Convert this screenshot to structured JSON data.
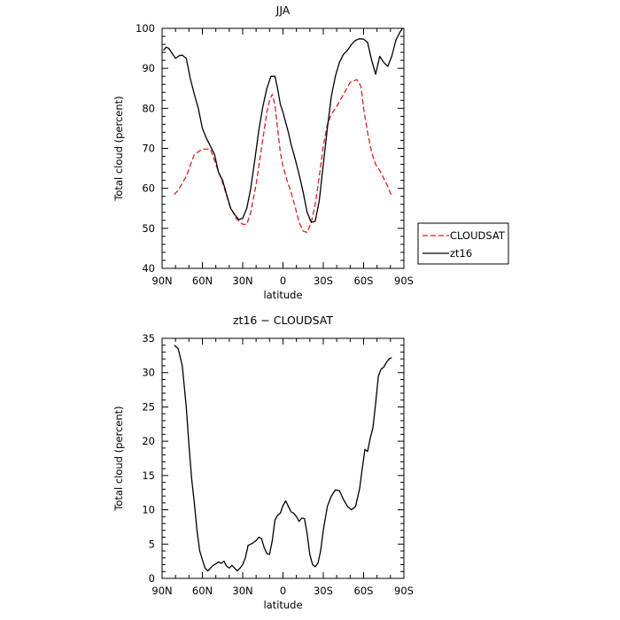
{
  "chart_data": [
    {
      "type": "line",
      "title": "JJA",
      "xlabel": "latitude",
      "ylabel": "Total cloud (percent)",
      "xlim": [
        90,
        -90
      ],
      "ylim": [
        40,
        100
      ],
      "xticks": [
        90,
        60,
        30,
        0,
        -30,
        -60,
        -90
      ],
      "xtick_labels": [
        "90N",
        "60N",
        "30N",
        "0",
        "30S",
        "60S",
        "90S"
      ],
      "yticks": [
        40,
        50,
        60,
        70,
        80,
        90,
        100
      ],
      "ytick_labels": [
        "40",
        "50",
        "60",
        "70",
        "80",
        "90",
        "100"
      ],
      "legend_position": "right, outside plot",
      "series": [
        {
          "name": "CLOUDSAT",
          "color": "#e0201c",
          "style": "dashed",
          "x": [
            81,
            78,
            72,
            66,
            60,
            54,
            50,
            45,
            40,
            35,
            30,
            27,
            24,
            20,
            16,
            12,
            10,
            8,
            6,
            4,
            2,
            0,
            -3,
            -6,
            -9,
            -12,
            -15,
            -18,
            -21,
            -24,
            -27,
            -30,
            -33,
            -36,
            -40,
            -45,
            -50,
            -55,
            -58,
            -60,
            -63,
            -66,
            -69,
            -72,
            -75,
            -78,
            -81
          ],
          "y": [
            58.5,
            59.5,
            63,
            68.5,
            69.8,
            69.8,
            66,
            61.5,
            56,
            52.5,
            51,
            51,
            54,
            61,
            70,
            79,
            82,
            83.5,
            81,
            75,
            69,
            65.5,
            62,
            59,
            55.5,
            51.5,
            49.3,
            49,
            51.5,
            56,
            63,
            70.5,
            76,
            78.5,
            80.5,
            83.5,
            86.5,
            87.2,
            85.5,
            80,
            74,
            69,
            66,
            64.5,
            62.5,
            60.5,
            58
          ]
        },
        {
          "name": "zt16",
          "color": "#000000",
          "style": "solid",
          "x": [
            89,
            87,
            85,
            82,
            80,
            77,
            75,
            72,
            69,
            66,
            63,
            60,
            57,
            54,
            51,
            48,
            45,
            42,
            39,
            36,
            33,
            30,
            27,
            24,
            21,
            18,
            15,
            12,
            9,
            6,
            4,
            2,
            0,
            -2,
            -4,
            -6,
            -9,
            -12,
            -15,
            -18,
            -21,
            -24,
            -27,
            -30,
            -33,
            -36,
            -39,
            -42,
            -45,
            -48,
            -51,
            -54,
            -57,
            -60,
            -63,
            -66,
            -69,
            -72,
            -75,
            -78,
            -81,
            -84,
            -87,
            -89
          ],
          "y": [
            94.5,
            95.3,
            95,
            93.5,
            92.5,
            93.2,
            93.3,
            92.5,
            87.5,
            83.5,
            80,
            75,
            72.5,
            70.5,
            68.5,
            64,
            62,
            58.5,
            55,
            53.5,
            52.2,
            52.5,
            55,
            60,
            67,
            74.5,
            80.5,
            85,
            88,
            88,
            85,
            81,
            79,
            76.5,
            74,
            71,
            67.5,
            63.5,
            59,
            54,
            51.5,
            51.8,
            57,
            66,
            75,
            83,
            88,
            91.5,
            93.5,
            94.5,
            96,
            97,
            97.4,
            97.3,
            96.5,
            92,
            88.5,
            93,
            91.5,
            90.5,
            93,
            97,
            99,
            100
          ]
        }
      ]
    },
    {
      "type": "line",
      "title": "zt16 − CLOUDSAT",
      "xlabel": "latitude",
      "ylabel": "Total cloud (percent)",
      "xlim": [
        90,
        -90
      ],
      "ylim": [
        0,
        35
      ],
      "xticks": [
        90,
        60,
        30,
        0,
        -30,
        -60,
        -90
      ],
      "xtick_labels": [
        "90N",
        "60N",
        "30N",
        "0",
        "30S",
        "60S",
        "90S"
      ],
      "yticks": [
        0,
        5,
        10,
        15,
        20,
        25,
        30,
        35
      ],
      "ytick_labels": [
        "0",
        "5",
        "10",
        "15",
        "20",
        "25",
        "30",
        "35"
      ],
      "series": [
        {
          "color": "#000000",
          "style": "solid",
          "x": [
            81,
            78,
            75,
            72,
            70,
            68,
            66,
            64,
            62,
            60,
            58,
            56,
            54,
            52,
            50,
            48,
            46,
            44,
            42,
            40,
            38,
            36,
            34,
            32,
            30,
            28,
            26,
            24,
            22,
            20,
            18,
            16,
            14,
            12,
            10,
            8,
            6,
            4,
            2,
            0,
            -2,
            -4,
            -6,
            -8,
            -10,
            -12,
            -14,
            -16,
            -18,
            -20,
            -22,
            -24,
            -26,
            -28,
            -30,
            -33,
            -36,
            -39,
            -42,
            -45,
            -48,
            -51,
            -54,
            -57,
            -59,
            -61,
            -63,
            -65,
            -67,
            -69,
            -71,
            -73,
            -75,
            -77,
            -79,
            -81
          ],
          "y": [
            34,
            33.5,
            31,
            25,
            19.5,
            14.5,
            11,
            7,
            4,
            2.7,
            1.5,
            1.1,
            1.5,
            1.9,
            2.1,
            2.4,
            2.2,
            2.5,
            1.8,
            1.5,
            1.9,
            1.5,
            1.1,
            1.5,
            2,
            3,
            4.8,
            5,
            5.2,
            5.5,
            6,
            5.8,
            4.5,
            3.6,
            3.5,
            5.5,
            8.5,
            9.2,
            9.5,
            10.6,
            11.3,
            10.5,
            9.7,
            9.5,
            9,
            8.3,
            8.8,
            8.7,
            6.5,
            3.5,
            2,
            1.7,
            2.2,
            4,
            7,
            10.5,
            12,
            12.9,
            12.8,
            11.5,
            10.5,
            10,
            10.5,
            13,
            16,
            18.8,
            18.5,
            20.5,
            22,
            25.5,
            29.5,
            30.5,
            30.8,
            31.5,
            32,
            32.2
          ]
        }
      ]
    }
  ],
  "legend": {
    "items": [
      {
        "label": "CLOUDSAT",
        "color": "#e0201c",
        "style": "dashed"
      },
      {
        "label": "zt16",
        "color": "#000000",
        "style": "solid"
      }
    ]
  }
}
